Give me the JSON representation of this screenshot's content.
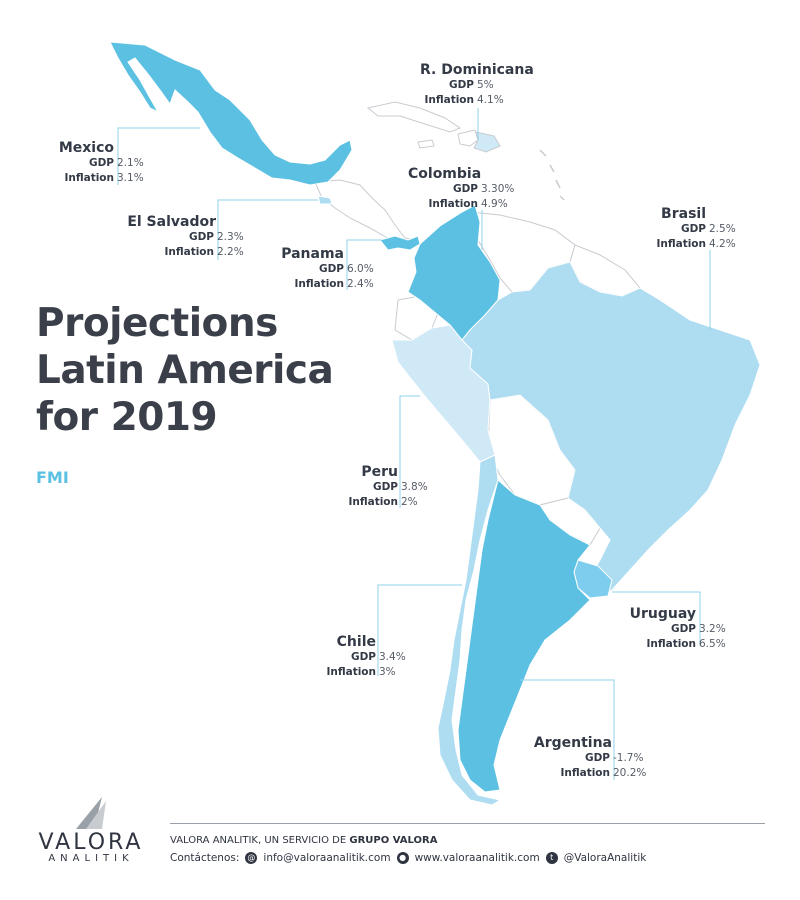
{
  "title_lines": [
    "Projections",
    "Latin America",
    "for 2019"
  ],
  "source": "FMI",
  "labels": {
    "gdp": "GDP",
    "inflation": "Inflation"
  },
  "colors": {
    "high": "#5bc0e2",
    "light": "#aedcf1",
    "pale": "#cfe9f6",
    "uruguay": "#7fcdee",
    "nodata_fill": "#ffffff",
    "border": "#c8ccd0",
    "leader": "#8fd0ea",
    "text": "#333a46"
  },
  "countries": {
    "mexico": {
      "name": "Mexico",
      "gdp": "2.1%",
      "inflation": "3.1%"
    },
    "el_salvador": {
      "name": "El Salvador",
      "gdp": "2.3%",
      "inflation": "2.2%"
    },
    "panama": {
      "name": "Panama",
      "gdp": "6.0%",
      "inflation": "2.4%"
    },
    "dominicana": {
      "name": "R. Dominicana",
      "gdp": "5%",
      "inflation": "4.1%"
    },
    "colombia": {
      "name": "Colombia",
      "gdp": "3.30%",
      "inflation": "4.9%"
    },
    "brasil": {
      "name": "Brasil",
      "gdp": "2.5%",
      "inflation": "4.2%"
    },
    "peru": {
      "name": "Peru",
      "gdp": "3.8%",
      "inflation": "2%"
    },
    "chile": {
      "name": "Chile",
      "gdp": "3.4%",
      "inflation": "3%"
    },
    "uruguay": {
      "name": "Uruguay",
      "gdp": "3.2%",
      "inflation": "6.5%"
    },
    "argentina": {
      "name": "Argentina",
      "gdp": "-1.7%",
      "inflation": "20.2%"
    }
  },
  "brand": {
    "name": "VALORA",
    "sub": "ANALITIK"
  },
  "footer": {
    "line1_prefix": "VALORA ANALITIK, UN SERVICIO DE ",
    "line1_bold": "GRUPO VALORA",
    "contact_label": "Contáctenos:",
    "email": "info@valoraanalitik.com",
    "web": "www.valoraanalitik.com",
    "twitter": "@ValoraAnalitik"
  }
}
